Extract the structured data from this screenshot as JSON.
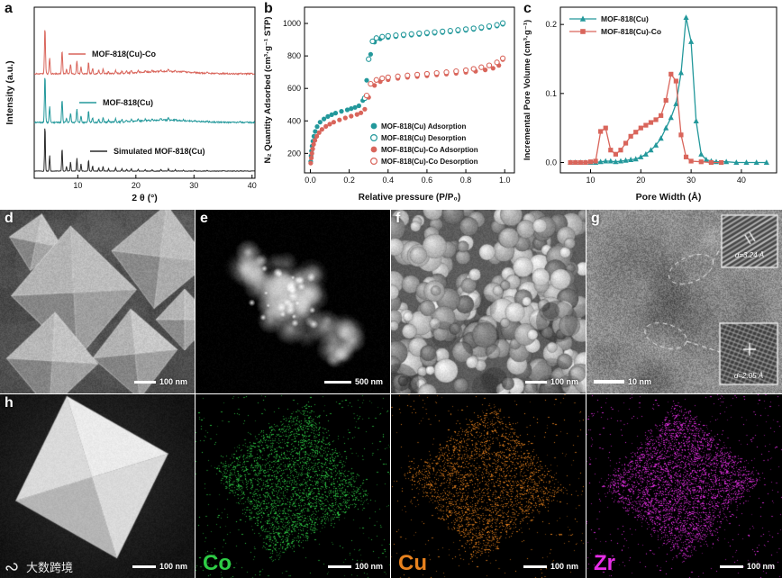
{
  "figure_labels": {
    "a": "a",
    "b": "b",
    "c": "c",
    "d": "d",
    "e": "e",
    "f": "f",
    "g": "g",
    "h": "h"
  },
  "watermark": {
    "text": "大数跨境"
  },
  "panels": {
    "d": {
      "scale_bar": "100 nm"
    },
    "e": {
      "scale_bar": "500 nm"
    },
    "f": {
      "scale_bar": "100 nm"
    },
    "g": {
      "scale_bar": "10 nm",
      "inset_top_label": "d=3.24 Å",
      "inset_bottom_label": "d=2.05 Å"
    },
    "h": {
      "scale_bar": "100 nm"
    },
    "co": {
      "label": "Co",
      "scale_bar": "100 nm",
      "color": "#2ecc45"
    },
    "cu": {
      "label": "Cu",
      "scale_bar": "100 nm",
      "color": "#e8821e"
    },
    "zr": {
      "label": "Zr",
      "scale_bar": "100 nm",
      "color": "#e62ee6"
    }
  },
  "chart_data": [
    {
      "type": "line",
      "panel": "a",
      "title": "",
      "xlabel": "2 θ (°)",
      "ylabel": "Intensity (a.u.)",
      "xlim": [
        2.5,
        40.5
      ],
      "xticks": [
        10,
        20,
        30,
        40
      ],
      "series": [
        {
          "name": "MOF-818(Cu)-Co",
          "color": "#d9655b",
          "level": 2,
          "peaks": [
            [
              4.35,
              1.0
            ],
            [
              5.15,
              0.34
            ],
            [
              7.3,
              0.5
            ],
            [
              8.05,
              0.1
            ],
            [
              8.75,
              0.2
            ],
            [
              9.85,
              0.28
            ],
            [
              10.55,
              0.15
            ],
            [
              11.85,
              0.24
            ],
            [
              12.55,
              0.11
            ],
            [
              13.6,
              0.07
            ],
            [
              14.35,
              0.1
            ],
            [
              15.3,
              0.05
            ],
            [
              16.5,
              0.07
            ],
            [
              17.6,
              0.05
            ],
            [
              18.4,
              0.04
            ],
            [
              19.2,
              0.05
            ],
            [
              20.4,
              0.04
            ],
            [
              21.6,
              0.03
            ],
            [
              22.8,
              0.03
            ],
            [
              24.3,
              0.04
            ],
            [
              25.6,
              0.05
            ],
            [
              26.8,
              0.03
            ],
            [
              28.2,
              0.02
            ],
            [
              30.1,
              0.02
            ],
            [
              32.3,
              0.015
            ],
            [
              35.0,
              0.012
            ],
            [
              38.0,
              0.01
            ]
          ]
        },
        {
          "name": "MOF-818(Cu)",
          "color": "#23989b",
          "level": 1,
          "peaks": [
            [
              4.35,
              1.0
            ],
            [
              5.15,
              0.34
            ],
            [
              7.3,
              0.5
            ],
            [
              8.05,
              0.1
            ],
            [
              8.75,
              0.2
            ],
            [
              9.85,
              0.28
            ],
            [
              10.55,
              0.15
            ],
            [
              11.85,
              0.24
            ],
            [
              12.55,
              0.11
            ],
            [
              13.6,
              0.07
            ],
            [
              14.35,
              0.1
            ],
            [
              15.3,
              0.05
            ],
            [
              16.5,
              0.07
            ],
            [
              17.6,
              0.05
            ],
            [
              18.4,
              0.04
            ],
            [
              19.2,
              0.05
            ],
            [
              20.4,
              0.04
            ],
            [
              21.6,
              0.03
            ],
            [
              22.8,
              0.03
            ],
            [
              24.3,
              0.04
            ],
            [
              25.6,
              0.05
            ],
            [
              26.8,
              0.03
            ],
            [
              28.2,
              0.02
            ],
            [
              30.1,
              0.02
            ],
            [
              32.3,
              0.015
            ],
            [
              35.0,
              0.012
            ],
            [
              38.0,
              0.01
            ]
          ]
        },
        {
          "name": "Simulated MOF-818(Cu)",
          "color": "#2a2a2a",
          "level": 0,
          "peaks": [
            [
              4.35,
              1.0
            ],
            [
              5.15,
              0.34
            ],
            [
              7.3,
              0.5
            ],
            [
              8.05,
              0.1
            ],
            [
              8.75,
              0.2
            ],
            [
              9.85,
              0.28
            ],
            [
              10.55,
              0.15
            ],
            [
              11.85,
              0.24
            ],
            [
              12.55,
              0.11
            ],
            [
              13.6,
              0.07
            ],
            [
              14.35,
              0.1
            ],
            [
              15.3,
              0.05
            ],
            [
              16.5,
              0.07
            ],
            [
              17.6,
              0.05
            ],
            [
              18.4,
              0.04
            ],
            [
              19.2,
              0.05
            ],
            [
              20.4,
              0.04
            ],
            [
              21.6,
              0.03
            ],
            [
              22.8,
              0.03
            ],
            [
              24.3,
              0.04
            ],
            [
              25.6,
              0.05
            ],
            [
              26.8,
              0.03
            ],
            [
              28.2,
              0.02
            ],
            [
              30.1,
              0.02
            ],
            [
              32.3,
              0.015
            ],
            [
              35.0,
              0.012
            ],
            [
              38.0,
              0.01
            ]
          ]
        }
      ]
    },
    {
      "type": "scatter",
      "panel": "b",
      "title": "",
      "xlabel": "Relative pressure (P/P₀)",
      "ylabel": "N₂ Quantity Adsorbed (cm³·g⁻¹ STP)",
      "xlim": [
        -0.03,
        1.05
      ],
      "ylim": [
        80,
        1100
      ],
      "xticks": [
        0.0,
        0.2,
        0.4,
        0.6,
        0.8,
        1.0
      ],
      "yticks": [
        200,
        400,
        600,
        800,
        1000
      ],
      "legend_position": "bottom-right",
      "series": [
        {
          "name": "MOF-818(Cu) Adsorption",
          "color": "#23989b",
          "filled": true,
          "x": [
            0.002,
            0.004,
            0.006,
            0.009,
            0.013,
            0.018,
            0.025,
            0.035,
            0.05,
            0.07,
            0.09,
            0.11,
            0.13,
            0.16,
            0.19,
            0.21,
            0.23,
            0.25,
            0.27,
            0.29,
            0.31,
            0.33,
            0.36,
            0.4,
            0.44,
            0.48,
            0.52,
            0.56,
            0.6,
            0.64,
            0.68,
            0.72,
            0.76,
            0.8,
            0.84,
            0.88,
            0.92,
            0.96,
            0.99
          ],
          "y": [
            150,
            185,
            215,
            245,
            275,
            305,
            335,
            365,
            392,
            412,
            427,
            438,
            448,
            459,
            468,
            476,
            483,
            493,
            525,
            650,
            810,
            885,
            905,
            914,
            919,
            924,
            928,
            932,
            936,
            940,
            944,
            948,
            953,
            958,
            963,
            969,
            976,
            984,
            995
          ]
        },
        {
          "name": "MOF-818(Cu) Desorption",
          "color": "#23989b",
          "filled": false,
          "x": [
            0.99,
            0.96,
            0.92,
            0.88,
            0.84,
            0.8,
            0.76,
            0.72,
            0.68,
            0.64,
            0.6,
            0.56,
            0.52,
            0.48,
            0.44,
            0.4,
            0.37,
            0.34,
            0.32,
            0.3,
            0.28
          ],
          "y": [
            1002,
            991,
            983,
            976,
            970,
            965,
            960,
            955,
            951,
            947,
            943,
            939,
            935,
            931,
            927,
            923,
            918,
            910,
            890,
            780,
            540
          ]
        },
        {
          "name": "MOF-818(Cu)-Co Adsorption",
          "color": "#d9655b",
          "filled": true,
          "x": [
            0.002,
            0.005,
            0.008,
            0.012,
            0.017,
            0.024,
            0.033,
            0.045,
            0.06,
            0.08,
            0.1,
            0.12,
            0.15,
            0.18,
            0.21,
            0.24,
            0.26,
            0.28,
            0.3,
            0.33,
            0.36,
            0.4,
            0.45,
            0.5,
            0.55,
            0.6,
            0.65,
            0.7,
            0.75,
            0.8,
            0.85,
            0.9,
            0.94,
            0.97,
            0.99
          ],
          "y": [
            140,
            172,
            200,
            228,
            255,
            280,
            305,
            328,
            348,
            366,
            380,
            392,
            406,
            418,
            429,
            440,
            450,
            472,
            545,
            618,
            642,
            654,
            662,
            668,
            673,
            678,
            683,
            688,
            693,
            699,
            706,
            714,
            724,
            742,
            778
          ]
        },
        {
          "name": "MOF-818(Cu)-Co Desorption",
          "color": "#d9655b",
          "filled": false,
          "x": [
            0.99,
            0.96,
            0.92,
            0.88,
            0.84,
            0.8,
            0.75,
            0.7,
            0.65,
            0.6,
            0.55,
            0.5,
            0.45,
            0.4,
            0.37,
            0.34,
            0.31,
            0.29
          ],
          "y": [
            785,
            760,
            742,
            730,
            720,
            712,
            706,
            700,
            695,
            690,
            685,
            680,
            674,
            668,
            662,
            652,
            628,
            556
          ]
        }
      ]
    },
    {
      "type": "line",
      "panel": "c",
      "title": "",
      "xlabel": "Pore Width (Å)",
      "ylabel": "Incremental Pore Volume (cm³·g⁻¹)",
      "xlim": [
        4,
        47
      ],
      "ylim": [
        -0.015,
        0.225
      ],
      "xticks": [
        10,
        20,
        30,
        40
      ],
      "yticks": [
        0.0,
        0.1,
        0.2
      ],
      "legend_position": "top-left",
      "series": [
        {
          "name": "MOF-818(Cu)",
          "color": "#23989b",
          "marker": "triangle",
          "x": [
            6,
            7,
            8,
            9,
            10,
            11,
            12,
            13,
            14,
            15,
            16,
            17,
            18,
            19,
            20,
            21,
            22,
            23,
            24,
            25,
            26,
            27,
            28,
            29,
            30,
            31,
            32,
            33,
            34,
            35,
            37,
            39,
            41,
            43,
            45
          ],
          "y": [
            0,
            0,
            0,
            0,
            0,
            0,
            0.001,
            0.002,
            0.002,
            0.001,
            0.002,
            0.003,
            0.004,
            0.005,
            0.008,
            0.012,
            0.018,
            0.025,
            0.035,
            0.05,
            0.065,
            0.085,
            0.13,
            0.21,
            0.175,
            0.06,
            0.012,
            0.004,
            0.002,
            0.001,
            0.001,
            0,
            0,
            0,
            0
          ]
        },
        {
          "name": "MOF-818(Cu)-Co",
          "color": "#d9655b",
          "marker": "square",
          "x": [
            6,
            7,
            8,
            9,
            10,
            11,
            12,
            13,
            14,
            15,
            16,
            17,
            18,
            19,
            20,
            21,
            22,
            23,
            24,
            25,
            26,
            27,
            28,
            29,
            30,
            32,
            34,
            36
          ],
          "y": [
            0,
            0,
            0,
            0,
            0.001,
            0.002,
            0.045,
            0.05,
            0.018,
            0.012,
            0.018,
            0.028,
            0.038,
            0.044,
            0.05,
            0.054,
            0.058,
            0.062,
            0.068,
            0.09,
            0.128,
            0.118,
            0.04,
            0.008,
            0.002,
            0.001,
            0,
            0
          ]
        }
      ]
    }
  ]
}
